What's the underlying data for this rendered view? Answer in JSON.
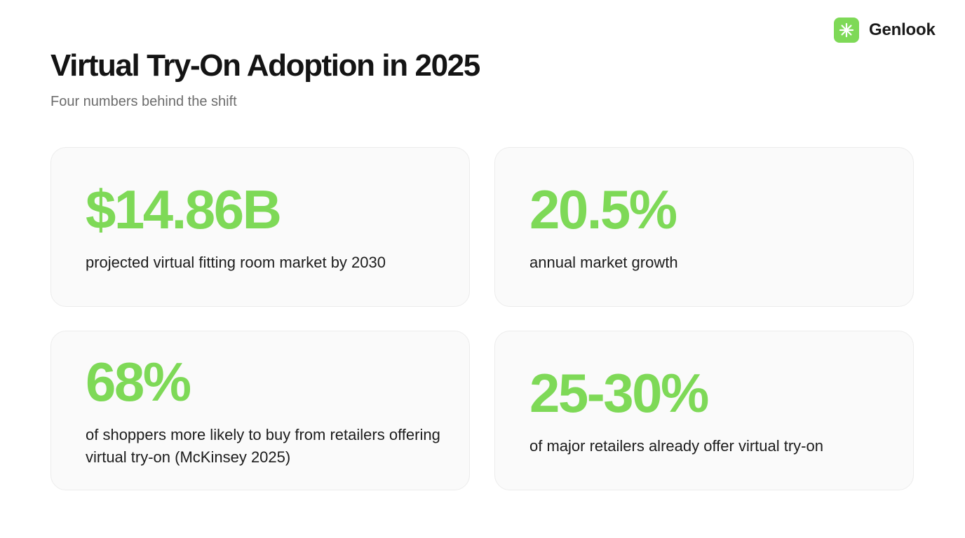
{
  "brand": {
    "name": "Genlook",
    "mark_color": "#7ed957",
    "icon": "sparkle-icon"
  },
  "header": {
    "title": "Virtual Try-On Adoption in 2025",
    "subtitle": "Four numbers behind the shift"
  },
  "accent_color": "#7ed957",
  "stats": [
    {
      "value": "$14.86B",
      "label": "projected virtual fitting room market by 2030"
    },
    {
      "value": "20.5%",
      "label": "annual market growth"
    },
    {
      "value": "68%",
      "label": "of shoppers more likely to buy from retailers offering virtual try-on (McKinsey 2025)"
    },
    {
      "value": "25-30%",
      "label": "of major retailers already offer virtual try-on"
    }
  ]
}
